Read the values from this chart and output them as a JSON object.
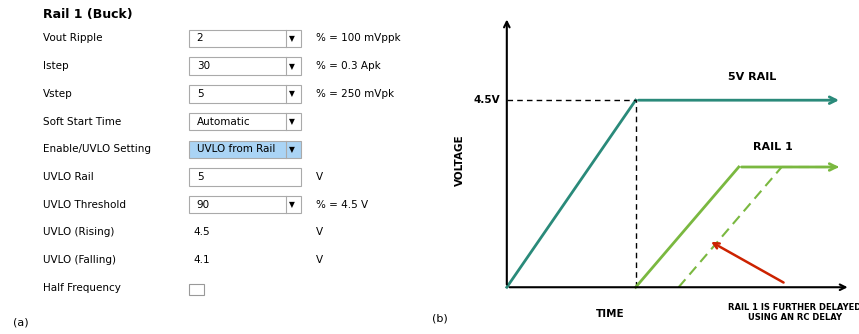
{
  "title_left": "Rail 1 (Buck)",
  "label_a": "(a)",
  "label_b": "(b)",
  "rows": [
    {
      "label": "Vout Ripple",
      "box_value": "2",
      "has_dropdown": true,
      "unit": "% = 100 mVppk"
    },
    {
      "label": "Istep",
      "box_value": "30",
      "has_dropdown": true,
      "unit": "% = 0.3 Apk"
    },
    {
      "label": "Vstep",
      "box_value": "5",
      "has_dropdown": true,
      "unit": "% = 250 mVpk"
    },
    {
      "label": "Soft Start Time",
      "box_value": "Automatic",
      "has_dropdown": true,
      "unit": ""
    },
    {
      "label": "Enable/UVLO Setting",
      "box_value": "UVLO from Rail",
      "has_dropdown": true,
      "unit": "",
      "highlight": true
    },
    {
      "label": "UVLO Rail",
      "box_value": "5",
      "has_dropdown": false,
      "unit": "V"
    },
    {
      "label": "UVLO Threshold",
      "box_value": "90",
      "has_dropdown": true,
      "unit": "% = 4.5 V"
    },
    {
      "label": "UVLO (Rising)",
      "box_value": "4.5",
      "has_dropdown": false,
      "unit": "V",
      "no_box": true
    },
    {
      "label": "UVLO (Falling)",
      "box_value": "4.1",
      "has_dropdown": false,
      "unit": "V",
      "no_box": true
    },
    {
      "label": "Half Frequency",
      "box_value": "",
      "has_dropdown": false,
      "unit": "",
      "checkbox": true
    }
  ],
  "bg_color": "#ffffff",
  "highlight_color": "#aad4f5",
  "teal_color": "#2a8a7a",
  "green_color": "#7ab840",
  "red_color": "#cc2200",
  "voltage_label": "VOLTAGE",
  "time_label": "TIME",
  "rail5v_label": "5V RAIL",
  "rail1_label": "RAIL 1",
  "thresh_label": "4.5V",
  "bottom_note": "RAIL 1 IS FURTHER DELAYED\nUSING AN RC DELAY"
}
